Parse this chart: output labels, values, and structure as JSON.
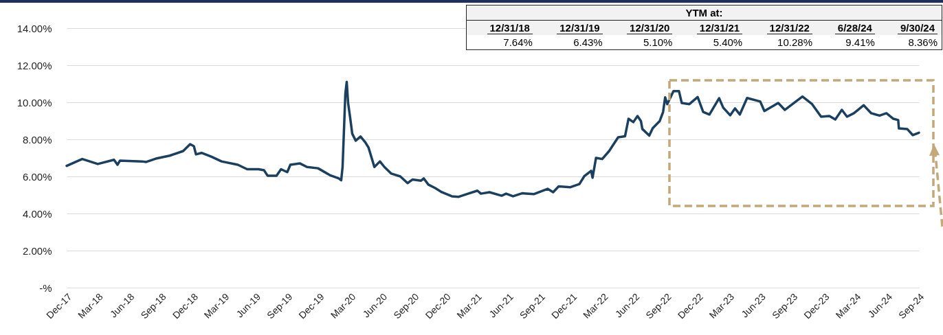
{
  "chart_data": {
    "type": "line",
    "x": [
      "2017-12-31",
      "2018-02-14",
      "2018-03-31",
      "2018-05-17",
      "2018-05-27",
      "2018-06-03",
      "2018-08-06",
      "2018-08-18",
      "2018-09-15",
      "2018-10-25",
      "2018-12-03",
      "2018-12-23",
      "2019-01-03",
      "2019-01-09",
      "2019-01-25",
      "2019-02-22",
      "2019-03-24",
      "2019-05-10",
      "2019-06-06",
      "2019-07-09",
      "2019-07-25",
      "2019-08-04",
      "2019-08-30",
      "2019-09-12",
      "2019-09-30",
      "2019-10-09",
      "2019-11-06",
      "2019-11-26",
      "2019-12-28",
      "2020-01-31",
      "2020-02-26",
      "2020-03-04",
      "2020-03-08",
      "2020-03-16",
      "2020-03-20",
      "2020-03-24",
      "2020-03-30",
      "2020-04-05",
      "2020-04-15",
      "2020-04-29",
      "2020-05-12",
      "2020-05-22",
      "2020-06-08",
      "2020-06-24",
      "2020-07-07",
      "2020-07-27",
      "2020-08-22",
      "2020-09-12",
      "2020-09-26",
      "2020-10-21",
      "2020-10-29",
      "2020-11-11",
      "2020-12-01",
      "2020-12-20",
      "2021-01-18",
      "2021-02-07",
      "2021-03-03",
      "2021-04-02",
      "2021-04-12",
      "2021-05-07",
      "2021-06-11",
      "2021-06-24",
      "2021-07-14",
      "2021-08-09",
      "2021-09-13",
      "2021-10-22",
      "2021-11-07",
      "2021-11-23",
      "2021-12-27",
      "2022-01-22",
      "2022-02-05",
      "2022-02-25",
      "2022-03-01",
      "2022-03-11",
      "2022-03-29",
      "2022-04-18",
      "2022-05-14",
      "2022-06-03",
      "2022-06-13",
      "2022-06-27",
      "2022-07-09",
      "2022-07-19",
      "2022-07-23",
      "2022-08-12",
      "2022-08-22",
      "2022-09-11",
      "2022-09-21",
      "2022-09-27",
      "2022-10-03",
      "2022-10-21",
      "2022-11-06",
      "2022-11-14",
      "2022-12-06",
      "2022-12-30",
      "2023-01-15",
      "2023-02-02",
      "2023-03-02",
      "2023-03-14",
      "2023-04-03",
      "2023-04-17",
      "2023-05-01",
      "2023-05-22",
      "2023-06-29",
      "2023-07-11",
      "2023-08-20",
      "2023-09-08",
      "2023-10-29",
      "2023-11-26",
      "2023-12-22",
      "2024-01-15",
      "2024-02-01",
      "2024-02-20",
      "2024-03-06",
      "2024-03-26",
      "2024-04-23",
      "2024-05-15",
      "2024-06-08",
      "2024-06-28",
      "2024-07-18",
      "2024-08-01",
      "2024-08-03",
      "2024-08-27",
      "2024-09-12",
      "2024-09-30"
    ],
    "series": [
      {
        "color": "#1b3f5f",
        "values": [
          6.57,
          6.94,
          6.67,
          6.9,
          6.63,
          6.85,
          6.81,
          6.78,
          6.96,
          7.12,
          7.37,
          7.74,
          7.63,
          7.19,
          7.27,
          7.07,
          6.81,
          6.63,
          6.39,
          6.39,
          6.33,
          6.04,
          6.04,
          6.39,
          6.23,
          6.63,
          6.7,
          6.51,
          6.44,
          6.07,
          5.89,
          5.79,
          6.51,
          10.46,
          11.1,
          9.96,
          9.16,
          8.3,
          7.93,
          8.15,
          7.86,
          7.56,
          6.51,
          6.81,
          6.51,
          6.15,
          6.0,
          5.64,
          5.83,
          5.77,
          5.89,
          5.56,
          5.37,
          5.15,
          4.93,
          4.9,
          5.05,
          5.23,
          5.07,
          5.15,
          4.96,
          5.07,
          4.93,
          5.09,
          5.05,
          5.33,
          5.15,
          5.46,
          5.42,
          5.59,
          6.01,
          6.3,
          5.93,
          7.0,
          6.94,
          7.37,
          8.11,
          8.17,
          9.11,
          8.93,
          9.26,
          8.98,
          8.56,
          8.2,
          8.6,
          8.98,
          9.48,
          10.27,
          9.9,
          10.6,
          10.6,
          9.96,
          9.9,
          10.28,
          9.48,
          9.34,
          10.22,
          9.71,
          9.3,
          9.67,
          9.34,
          10.23,
          10.04,
          9.53,
          9.96,
          9.59,
          10.31,
          9.9,
          9.22,
          9.26,
          9.07,
          9.59,
          9.22,
          9.41,
          9.84,
          9.41,
          9.28,
          9.41,
          9.11,
          9.04,
          8.59,
          8.56,
          8.23,
          8.36
        ]
      }
    ],
    "xlim": [
      "2017-12-31",
      "2024-09-30"
    ],
    "xticks": [
      {
        "value": "2017-12-31",
        "label": "Dec-17"
      },
      {
        "value": "2018-03-31",
        "label": "Mar-18"
      },
      {
        "value": "2018-06-30",
        "label": "Jun-18"
      },
      {
        "value": "2018-09-30",
        "label": "Sep-18"
      },
      {
        "value": "2018-12-31",
        "label": "Dec-18"
      },
      {
        "value": "2019-03-31",
        "label": "Mar-19"
      },
      {
        "value": "2019-06-30",
        "label": "Jun-19"
      },
      {
        "value": "2019-09-30",
        "label": "Sep-19"
      },
      {
        "value": "2019-12-31",
        "label": "Dec-19"
      },
      {
        "value": "2020-03-31",
        "label": "Mar-20"
      },
      {
        "value": "2020-06-30",
        "label": "Jun-20"
      },
      {
        "value": "2020-09-30",
        "label": "Sep-20"
      },
      {
        "value": "2020-12-31",
        "label": "Dec-20"
      },
      {
        "value": "2021-03-31",
        "label": "Mar-21"
      },
      {
        "value": "2021-06-30",
        "label": "Jun-21"
      },
      {
        "value": "2021-09-30",
        "label": "Sep-21"
      },
      {
        "value": "2021-12-31",
        "label": "Dec-21"
      },
      {
        "value": "2022-03-31",
        "label": "Mar-22"
      },
      {
        "value": "2022-06-30",
        "label": "Jun-22"
      },
      {
        "value": "2022-09-30",
        "label": "Sep-22"
      },
      {
        "value": "2022-12-31",
        "label": "Dec-22"
      },
      {
        "value": "2023-03-31",
        "label": "Mar-23"
      },
      {
        "value": "2023-06-30",
        "label": "Jun-23"
      },
      {
        "value": "2023-09-30",
        "label": "Sep-23"
      },
      {
        "value": "2023-12-31",
        "label": "Dec-23"
      },
      {
        "value": "2024-03-31",
        "label": "Mar-24"
      },
      {
        "value": "2024-06-30",
        "label": "Jun-24"
      },
      {
        "value": "2024-09-30",
        "label": "Sep-24"
      }
    ],
    "ylim": [
      0,
      14
    ],
    "yticks": [
      {
        "value": 0,
        "label": "-%"
      },
      {
        "value": 2,
        "label": "2.00%"
      },
      {
        "value": 4,
        "label": "4.00%"
      },
      {
        "value": 6,
        "label": "6.00%"
      },
      {
        "value": 8,
        "label": "8.00%"
      },
      {
        "value": 10,
        "label": "10.00%"
      },
      {
        "value": 12,
        "label": "12.00%"
      },
      {
        "value": 14,
        "label": "14.00%"
      }
    ],
    "grid": "y",
    "annotations": [
      "YTM at:",
      "12/31/18",
      "12/31/19",
      "12/31/20",
      "12/31/21",
      "12/31/22",
      "6/28/24",
      "9/30/24",
      "7.64%",
      "6.43%",
      "5.10%",
      "5.40%",
      "10.28%",
      "9.41%",
      "8.36%"
    ]
  }
}
